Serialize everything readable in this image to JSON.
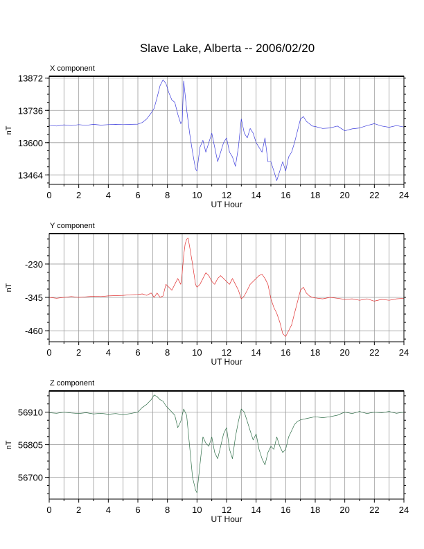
{
  "chart_data": {
    "type": "line",
    "title": "Slave Lake, Alberta -- 2006/02/20",
    "panels": [
      {
        "name": "X component",
        "color": "#3b3bdc",
        "xlabel": "UT Hour",
        "ylabel": "nT",
        "xlim": [
          0,
          24
        ],
        "xticks": [
          0,
          2,
          4,
          6,
          8,
          10,
          12,
          14,
          16,
          18,
          20,
          22,
          24
        ],
        "ylim": [
          13424,
          13880
        ],
        "yticks": [
          13464,
          13600,
          13736,
          13872
        ],
        "series": [
          {
            "x": [
              0,
              0.5,
              1,
              1.5,
              2,
              2.5,
              3,
              3.5,
              4,
              4.5,
              5,
              5.5,
              6,
              6.3,
              6.6,
              6.9,
              7.1,
              7.3,
              7.5,
              7.7,
              7.9,
              8.1,
              8.3,
              8.5,
              8.7,
              8.9,
              9.0,
              9.1,
              9.2,
              9.3,
              9.5,
              9.7,
              9.9,
              10.0,
              10.2,
              10.4,
              10.6,
              10.8,
              11.0,
              11.2,
              11.4,
              11.6,
              11.8,
              12.0,
              12.2,
              12.4,
              12.6,
              12.8,
              13.0,
              13.2,
              13.4,
              13.6,
              13.8,
              14.0,
              14.2,
              14.4,
              14.6,
              14.8,
              15.0,
              15.2,
              15.4,
              15.6,
              15.8,
              16.0,
              16.2,
              16.4,
              16.6,
              16.8,
              17.0,
              17.2,
              17.4,
              17.6,
              17.8,
              18,
              18.5,
              19,
              19.5,
              20,
              20.5,
              21,
              21.5,
              22,
              22.5,
              23,
              23.5,
              24
            ],
            "y": [
              13673,
              13670,
              13675,
              13672,
              13676,
              13673,
              13677,
              13674,
              13676,
              13677,
              13676,
              13677,
              13678,
              13685,
              13700,
              13725,
              13745,
              13790,
              13840,
              13865,
              13850,
              13810,
              13780,
              13770,
              13720,
              13680,
              13690,
              13860,
              13800,
              13740,
              13640,
              13560,
              13490,
              13480,
              13580,
              13610,
              13560,
              13600,
              13640,
              13580,
              13520,
              13560,
              13600,
              13620,
              13560,
              13540,
              13500,
              13580,
              13700,
              13640,
              13620,
              13660,
              13640,
              13600,
              13580,
              13560,
              13620,
              13520,
              13520,
              13480,
              13440,
              13480,
              13520,
              13480,
              13540,
              13560,
              13600,
              13650,
              13700,
              13710,
              13690,
              13680,
              13670,
              13668,
              13660,
              13662,
              13670,
              13650,
              13658,
              13662,
              13672,
              13680,
              13670,
              13665,
              13672,
              13666
            ]
          }
        ]
      },
      {
        "name": "Y component",
        "color": "#e03030",
        "xlabel": "UT Hour",
        "ylabel": "nT",
        "xlim": [
          0,
          24
        ],
        "xticks": [
          0,
          2,
          4,
          6,
          8,
          10,
          12,
          14,
          16,
          18,
          20,
          22,
          24
        ],
        "ylim": [
          -498,
          -125
        ],
        "yticks": [
          -230,
          -345,
          -460
        ],
        "series": [
          {
            "x": [
              0,
              0.5,
              1,
              1.5,
              2,
              2.5,
              3,
              3.5,
              4,
              4.5,
              5,
              5.5,
              6,
              6.3,
              6.6,
              6.9,
              7.1,
              7.3,
              7.5,
              7.7,
              7.9,
              8.1,
              8.3,
              8.5,
              8.7,
              8.9,
              9.0,
              9.1,
              9.2,
              9.3,
              9.4,
              9.5,
              9.7,
              9.9,
              10.0,
              10.2,
              10.4,
              10.6,
              10.8,
              11.0,
              11.2,
              11.4,
              11.6,
              11.8,
              12.0,
              12.2,
              12.4,
              12.6,
              12.8,
              13.0,
              13.2,
              13.4,
              13.6,
              13.8,
              14.0,
              14.2,
              14.4,
              14.6,
              14.8,
              15.0,
              15.2,
              15.4,
              15.6,
              15.8,
              16.0,
              16.2,
              16.4,
              16.6,
              16.8,
              17.0,
              17.2,
              17.4,
              17.6,
              17.8,
              18,
              18.5,
              19,
              19.5,
              20,
              20.5,
              21,
              21.5,
              22,
              22.5,
              23,
              23.5,
              24
            ],
            "y": [
              -345,
              -348,
              -345,
              -342,
              -345,
              -343,
              -341,
              -342,
              -340,
              -339,
              -338,
              -336,
              -335,
              -333,
              -338,
              -330,
              -345,
              -330,
              -345,
              -340,
              -300,
              -310,
              -320,
              -300,
              -280,
              -300,
              -260,
              -200,
              -160,
              -145,
              -140,
              -170,
              -230,
              -300,
              -310,
              -300,
              -280,
              -260,
              -270,
              -290,
              -300,
              -280,
              -270,
              -280,
              -290,
              -300,
              -280,
              -300,
              -320,
              -350,
              -340,
              -320,
              -300,
              -290,
              -280,
              -270,
              -265,
              -280,
              -300,
              -350,
              -380,
              -400,
              -430,
              -470,
              -480,
              -460,
              -440,
              -400,
              -360,
              -320,
              -310,
              -330,
              -340,
              -345,
              -347,
              -350,
              -345,
              -348,
              -352,
              -350,
              -355,
              -350,
              -358,
              -352,
              -355,
              -350,
              -348
            ]
          }
        ]
      },
      {
        "name": "Z component",
        "color": "#2f6e48",
        "xlabel": "UT Hour",
        "ylabel": "nT",
        "xlim": [
          0,
          24
        ],
        "xticks": [
          0,
          2,
          4,
          6,
          8,
          10,
          12,
          14,
          16,
          18,
          20,
          22,
          24
        ],
        "ylim": [
          56630,
          56978
        ],
        "yticks": [
          56910,
          56805,
          56700
        ],
        "series": [
          {
            "x": [
              0,
              0.5,
              1,
              1.5,
              2,
              2.5,
              3,
              3.5,
              4,
              4.5,
              5,
              5.5,
              6,
              6.3,
              6.6,
              6.9,
              7.1,
              7.3,
              7.5,
              7.7,
              7.9,
              8.1,
              8.3,
              8.5,
              8.7,
              8.9,
              9.1,
              9.3,
              9.5,
              9.7,
              9.9,
              10.0,
              10.2,
              10.4,
              10.6,
              10.8,
              11.0,
              11.2,
              11.4,
              11.6,
              11.8,
              12.0,
              12.2,
              12.4,
              12.6,
              12.8,
              13.0,
              13.2,
              13.4,
              13.6,
              13.8,
              14.0,
              14.2,
              14.4,
              14.6,
              14.8,
              15.0,
              15.2,
              15.4,
              15.6,
              15.8,
              16.0,
              16.2,
              16.4,
              16.6,
              16.8,
              17.0,
              17.5,
              18,
              18.5,
              19,
              19.5,
              20,
              20.5,
              21,
              21.5,
              22,
              22.5,
              23,
              23.5,
              24
            ],
            "y": [
              56908,
              56906,
              56910,
              56907,
              56905,
              56908,
              56904,
              56906,
              56903,
              56905,
              56902,
              56905,
              56910,
              56925,
              56935,
              56950,
              56965,
              56960,
              56950,
              56945,
              56930,
              56920,
              56910,
              56900,
              56860,
              56880,
              56920,
              56900,
              56800,
              56700,
              56660,
              56650,
              56740,
              56830,
              56810,
              56800,
              56830,
              56780,
              56760,
              56800,
              56840,
              56860,
              56790,
              56760,
              56830,
              56880,
              56920,
              56910,
              56880,
              56850,
              56820,
              56840,
              56790,
              56760,
              56740,
              56780,
              56800,
              56790,
              56830,
              56800,
              56780,
              56790,
              56830,
              56850,
              56870,
              56880,
              56885,
              56890,
              56895,
              56892,
              56895,
              56900,
              56910,
              56905,
              56912,
              56905,
              56910,
              56908,
              56912,
              56906,
              56910
            ]
          }
        ]
      }
    ]
  }
}
